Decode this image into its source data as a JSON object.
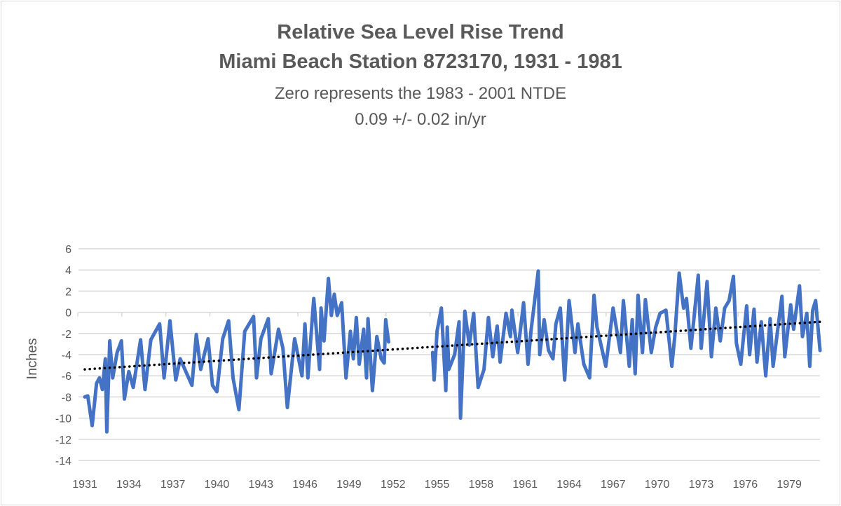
{
  "chart_data": {
    "type": "line",
    "title": "Relative Sea Level Rise Trend",
    "title_line2": "Miami Beach Station 8723170, 1931 - 1981",
    "subtitle": "Zero represents the 1983 - 2001  NTDE",
    "subtitle_line2": "0.09 +/- 0.02 in/yr",
    "xlabel": "",
    "ylabel": "Inches",
    "ylim": [
      -14,
      6
    ],
    "yticks": [
      6,
      4,
      2,
      0,
      -2,
      -4,
      -6,
      -8,
      -10,
      -12,
      -14
    ],
    "xlim": [
      1931,
      1981.1
    ],
    "xticks": [
      1931,
      1934,
      1937,
      1940,
      1943,
      1946,
      1949,
      1952,
      1955,
      1958,
      1961,
      1964,
      1967,
      1970,
      1973,
      1976,
      1979
    ],
    "grid": "horizontal",
    "legend": "none",
    "colors": {
      "series": "#4472C4",
      "trend": "#000000",
      "grid": "#d9d9d9",
      "text": "#595959"
    },
    "series": [
      {
        "style": "solid",
        "points": [
          [
            1931.0,
            -8.0
          ],
          [
            1931.2,
            -7.9
          ],
          [
            1931.5,
            -10.7
          ],
          [
            1931.8,
            -6.7
          ],
          [
            1932.0,
            -6.2
          ],
          [
            1932.2,
            -7.3
          ],
          [
            1932.4,
            -4.4
          ],
          [
            1932.5,
            -11.3
          ],
          [
            1932.7,
            -2.7
          ],
          [
            1932.9,
            -6.2
          ],
          [
            1933.2,
            -3.8
          ],
          [
            1933.5,
            -2.7
          ],
          [
            1933.7,
            -8.2
          ],
          [
            1934.0,
            -5.6
          ],
          [
            1934.3,
            -7.1
          ],
          [
            1934.8,
            -2.6
          ],
          [
            1935.1,
            -7.3
          ],
          [
            1935.5,
            -2.6
          ],
          [
            1936.1,
            -1.1
          ],
          [
            1936.4,
            -6.2
          ],
          [
            1936.8,
            -0.8
          ],
          [
            1937.2,
            -6.4
          ],
          [
            1937.5,
            -4.4
          ],
          [
            1938.3,
            -6.9
          ],
          [
            1938.6,
            -2.1
          ],
          [
            1938.9,
            -5.4
          ],
          [
            1939.4,
            -2.5
          ],
          [
            1939.7,
            -6.9
          ],
          [
            1940.0,
            -7.5
          ],
          [
            1940.4,
            -2.5
          ],
          [
            1940.8,
            -0.8
          ],
          [
            1941.1,
            -6.2
          ],
          [
            1941.5,
            -9.2
          ],
          [
            1941.9,
            -1.8
          ],
          [
            1942.5,
            -0.4
          ],
          [
            1942.7,
            -6.2
          ],
          [
            1943.0,
            -2.5
          ],
          [
            1943.5,
            -0.6
          ],
          [
            1943.7,
            -5.8
          ],
          [
            1944.2,
            -1.6
          ],
          [
            1944.5,
            -3.4
          ],
          [
            1944.8,
            -9.0
          ],
          [
            1945.3,
            -2.5
          ],
          [
            1945.8,
            -6.0
          ],
          [
            1946.0,
            -1.1
          ],
          [
            1946.2,
            -6.2
          ],
          [
            1946.6,
            1.3
          ],
          [
            1947.0,
            -5.4
          ],
          [
            1947.1,
            0.4
          ],
          [
            1947.3,
            -2.7
          ],
          [
            1947.6,
            3.2
          ],
          [
            1947.8,
            -0.3
          ],
          [
            1948.0,
            1.7
          ],
          [
            1948.2,
            -0.3
          ],
          [
            1948.5,
            0.9
          ],
          [
            1948.8,
            -6.2
          ],
          [
            1949.1,
            -1.8
          ],
          [
            1949.3,
            -4.4
          ],
          [
            1949.5,
            -0.5
          ],
          [
            1949.7,
            -4.9
          ],
          [
            1950.0,
            -1.6
          ],
          [
            1950.2,
            -6.2
          ],
          [
            1950.3,
            -0.6
          ],
          [
            1950.6,
            -7.4
          ],
          [
            1950.9,
            -2.3
          ],
          [
            1951.2,
            -4.4
          ],
          [
            1951.4,
            -4.8
          ],
          [
            1951.5,
            -0.7
          ],
          [
            1951.7,
            -2.8
          ],
          null,
          [
            1954.7,
            -3.8
          ],
          [
            1954.8,
            -6.4
          ],
          [
            1955.0,
            -1.8
          ],
          [
            1955.3,
            0.4
          ],
          [
            1955.6,
            -7.4
          ],
          [
            1955.7,
            -1.4
          ],
          [
            1955.8,
            -5.4
          ],
          [
            1956.2,
            -4.0
          ],
          [
            1956.5,
            -0.9
          ],
          [
            1956.6,
            -10.0
          ],
          [
            1956.9,
            0.1
          ],
          [
            1957.2,
            -3.1
          ],
          [
            1957.5,
            -0.1
          ],
          [
            1957.8,
            -7.1
          ],
          [
            1958.2,
            -5.4
          ],
          [
            1958.5,
            -0.5
          ],
          [
            1958.8,
            -4.2
          ],
          [
            1959.1,
            -1.3
          ],
          [
            1959.3,
            -4.7
          ],
          [
            1959.7,
            -0.1
          ],
          [
            1960.0,
            -2.3
          ],
          [
            1960.1,
            0.2
          ],
          [
            1960.5,
            -3.8
          ],
          [
            1960.9,
            0.9
          ],
          [
            1961.2,
            -4.9
          ],
          [
            1961.4,
            -1.8
          ],
          [
            1961.9,
            3.9
          ],
          [
            1962.0,
            -4.0
          ],
          [
            1962.3,
            -0.7
          ],
          [
            1962.6,
            -3.6
          ],
          [
            1962.9,
            -4.4
          ],
          [
            1963.1,
            -1.1
          ],
          [
            1963.4,
            0.4
          ],
          [
            1963.7,
            -6.4
          ],
          [
            1964.0,
            1.1
          ],
          [
            1964.4,
            -3.8
          ],
          [
            1964.6,
            -1.1
          ],
          [
            1965.0,
            -4.9
          ],
          [
            1965.4,
            -6.2
          ],
          [
            1965.7,
            1.6
          ],
          [
            1965.9,
            -1.4
          ],
          [
            1966.5,
            -5.1
          ],
          [
            1967.0,
            0.4
          ],
          [
            1967.5,
            -3.8
          ],
          [
            1967.7,
            1.1
          ],
          [
            1968.1,
            -5.1
          ],
          [
            1968.3,
            -0.7
          ],
          [
            1968.5,
            -5.8
          ],
          [
            1968.7,
            1.6
          ],
          [
            1969.0,
            -3.8
          ],
          [
            1969.2,
            1.2
          ],
          [
            1969.6,
            -3.8
          ],
          [
            1969.9,
            -1.4
          ],
          [
            1970.2,
            -0.1
          ],
          [
            1970.6,
            0.2
          ],
          [
            1971.0,
            -5.1
          ],
          [
            1971.2,
            -2.3
          ],
          [
            1971.5,
            3.7
          ],
          [
            1971.8,
            0.4
          ],
          [
            1972.0,
            1.3
          ],
          [
            1972.3,
            -3.4
          ],
          [
            1972.5,
            -0.7
          ],
          [
            1972.8,
            3.5
          ],
          [
            1973.0,
            -3.4
          ],
          [
            1973.4,
            2.9
          ],
          [
            1973.7,
            -4.2
          ],
          [
            1974.0,
            0.4
          ],
          [
            1974.3,
            -2.7
          ],
          [
            1974.6,
            0.4
          ],
          [
            1974.9,
            1.1
          ],
          [
            1975.2,
            3.4
          ],
          [
            1975.4,
            -2.9
          ],
          [
            1975.7,
            -4.9
          ],
          [
            1976.1,
            0.6
          ],
          [
            1976.3,
            -4.0
          ],
          [
            1976.6,
            0.3
          ],
          [
            1976.8,
            -4.7
          ],
          [
            1977.1,
            -0.9
          ],
          [
            1977.4,
            -6.0
          ],
          [
            1977.7,
            -0.6
          ],
          [
            1977.9,
            -5.1
          ],
          [
            1978.2,
            -1.8
          ],
          [
            1978.5,
            1.5
          ],
          [
            1978.7,
            -4.2
          ],
          [
            1979.1,
            0.7
          ],
          [
            1979.3,
            -1.6
          ],
          [
            1979.7,
            2.5
          ],
          [
            1979.9,
            -2.3
          ],
          [
            1980.2,
            -0.1
          ],
          [
            1980.4,
            -5.1
          ],
          [
            1980.6,
            0.2
          ],
          [
            1980.8,
            1.1
          ],
          [
            1981.1,
            -3.6
          ]
        ]
      },
      {
        "style": "dotted-trendline",
        "points": [
          [
            1931.0,
            -5.4
          ],
          [
            1981.1,
            -0.9
          ]
        ]
      }
    ]
  }
}
